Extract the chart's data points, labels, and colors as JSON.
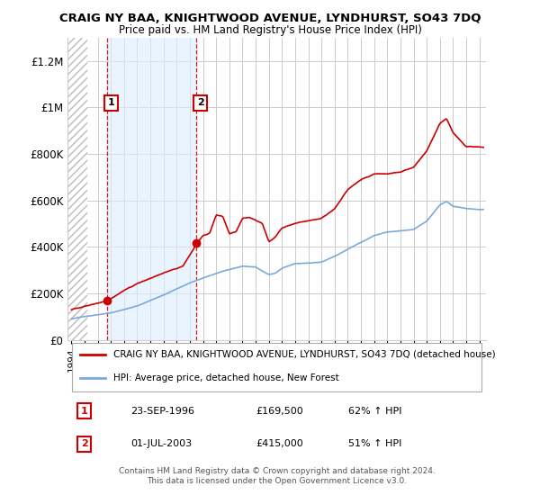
{
  "title1": "CRAIG NY BAA, KNIGHTWOOD AVENUE, LYNDHURST, SO43 7DQ",
  "title2": "Price paid vs. HM Land Registry's House Price Index (HPI)",
  "ylim": [
    0,
    1300000
  ],
  "xlim_start": 1993.7,
  "xlim_end": 2025.5,
  "hatch_end": 1995.2,
  "shade_start": 1996.73,
  "shade_end": 2003.5,
  "yticks": [
    0,
    200000,
    400000,
    600000,
    800000,
    1000000,
    1200000
  ],
  "ytick_labels": [
    "£0",
    "£200K",
    "£400K",
    "£600K",
    "£800K",
    "£1M",
    "£1.2M"
  ],
  "sale1_x": 1996.73,
  "sale1_y": 169500,
  "sale1_label": "1",
  "sale1_date": "23-SEP-1996",
  "sale1_price": "£169,500",
  "sale1_hpi": "62% ↑ HPI",
  "sale2_x": 2003.5,
  "sale2_y": 415000,
  "sale2_label": "2",
  "sale2_date": "01-JUL-2003",
  "sale2_price": "£415,000",
  "sale2_hpi": "51% ↑ HPI",
  "line_color_property": "#cc0000",
  "line_color_hpi": "#7aaadd",
  "legend_label_property": "CRAIG NY BAA, KNIGHTWOOD AVENUE, LYNDHURST, SO43 7DQ (detached house)",
  "legend_label_hpi": "HPI: Average price, detached house, New Forest",
  "footnote": "Contains HM Land Registry data © Crown copyright and database right 2024.\nThis data is licensed under the Open Government Licence v3.0.",
  "background_color": "#ffffff",
  "plot_bg_color": "#ffffff",
  "grid_color": "#cccccc",
  "shade_color": "#ddeeff",
  "hatch_color": "#d0d0d0"
}
